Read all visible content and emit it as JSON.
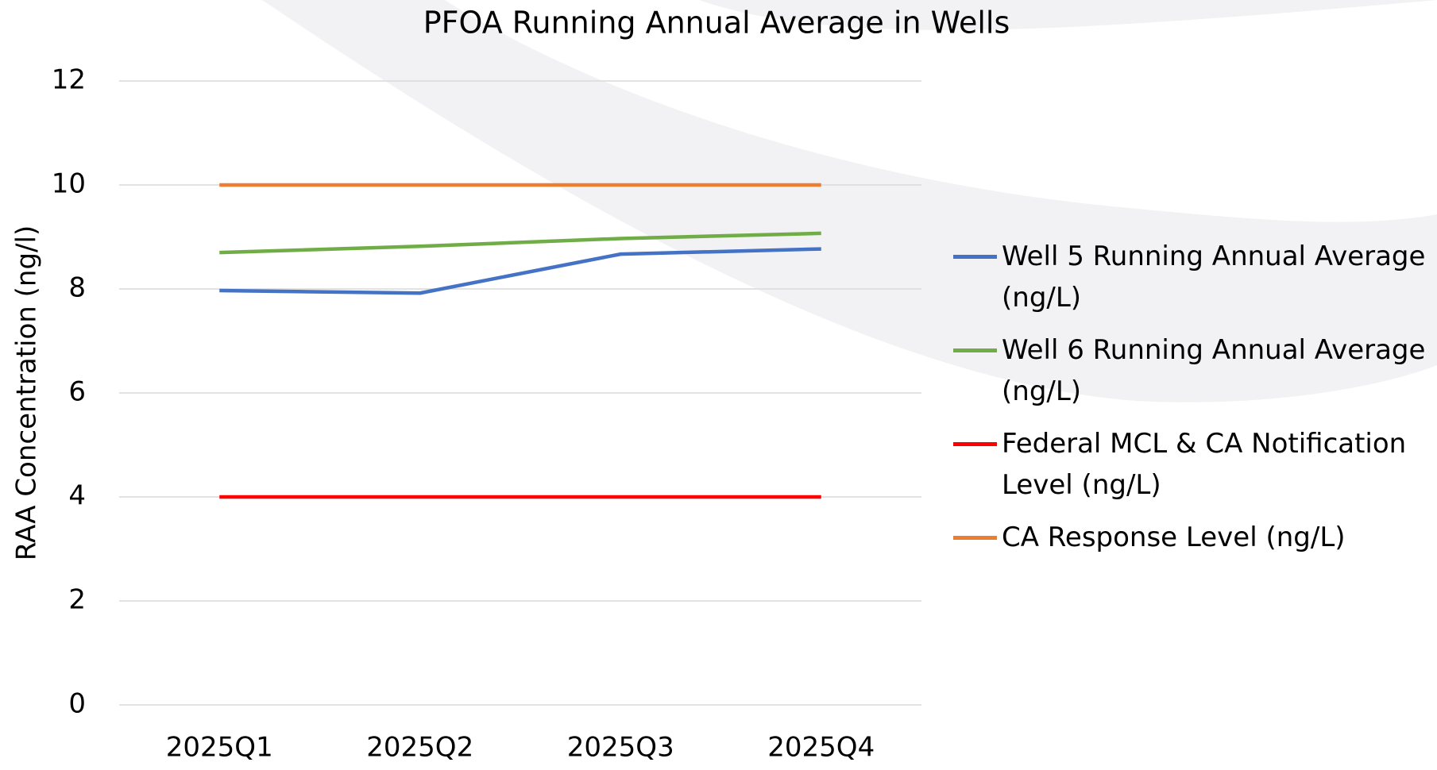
{
  "chart_data": {
    "type": "line",
    "title": "PFOA Running Annual Average in Wells",
    "y_label": "RAA Concentration (ng/l)",
    "categories": [
      "2025Q1",
      "2025Q2",
      "2025Q3",
      "2025Q4"
    ],
    "series": [
      {
        "name": "Well 5 Running Annual Average (ng/L)",
        "color": "#4472c4",
        "values": [
          7.97,
          7.92,
          8.67,
          8.77
        ]
      },
      {
        "name": "Well 6 Running Annual Average (ng/L)",
        "color": "#70ad47",
        "values": [
          8.7,
          8.82,
          8.97,
          9.07
        ]
      },
      {
        "name": "Federal MCL & CA Notification Level (ng/L)",
        "color": "#ff0000",
        "values": [
          4,
          4,
          4,
          4
        ]
      },
      {
        "name": "CA Response Level (ng/L)",
        "color": "#ed7d31",
        "values": [
          10,
          10,
          10,
          10
        ]
      }
    ],
    "ylim": [
      0,
      12
    ],
    "yticks": [
      0,
      2,
      4,
      6,
      8,
      10,
      12
    ],
    "grid": true,
    "legend": "right"
  }
}
